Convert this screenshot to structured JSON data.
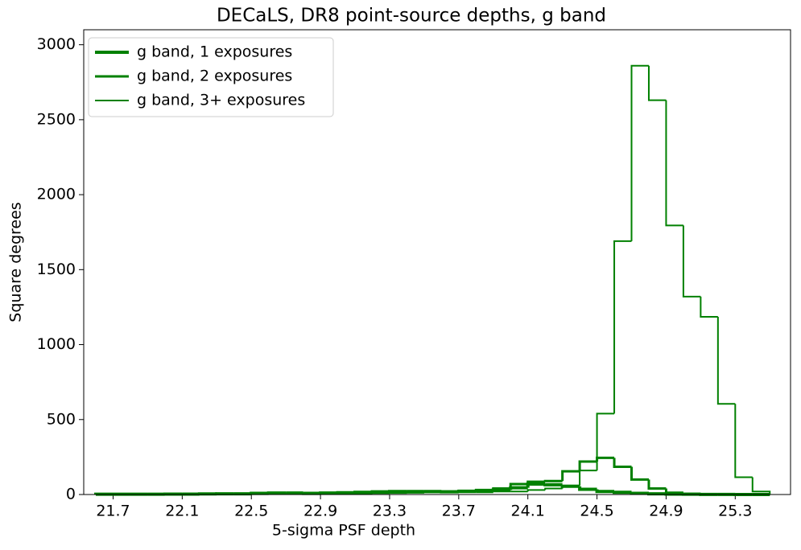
{
  "chart_data": {
    "type": "histogram",
    "title": "DECaLS, DR8 point-source depths, g band",
    "x_label": "5-sigma PSF depth",
    "y_label": "Square degrees",
    "bins": [
      21.6,
      21.7,
      21.8,
      21.9,
      22.0,
      22.1,
      22.2,
      22.3,
      22.4,
      22.5,
      22.6,
      22.7,
      22.8,
      22.9,
      23.0,
      23.1,
      23.2,
      23.3,
      23.4,
      23.5,
      23.6,
      23.7,
      23.8,
      23.9,
      24.0,
      24.1,
      24.2,
      24.3,
      24.4,
      24.5,
      24.6,
      24.7,
      24.8,
      24.9,
      25.0,
      25.1,
      25.2,
      25.3,
      25.4,
      25.5
    ],
    "series": [
      {
        "name": "g band, 1 exposures",
        "color": "#008000",
        "width": 4,
        "values": [
          2,
          2,
          2,
          2,
          3,
          3,
          4,
          5,
          5,
          8,
          10,
          10,
          8,
          10,
          12,
          15,
          18,
          20,
          20,
          20,
          18,
          20,
          20,
          30,
          45,
          70,
          65,
          55,
          35,
          20,
          15,
          8,
          5,
          3,
          2,
          1,
          1,
          0,
          0
        ]
      },
      {
        "name": "g band, 2 exposures",
        "color": "#008000",
        "width": 3,
        "values": [
          2,
          2,
          2,
          3,
          3,
          3,
          4,
          5,
          5,
          5,
          6,
          6,
          5,
          8,
          8,
          10,
          12,
          15,
          15,
          18,
          20,
          25,
          30,
          40,
          70,
          85,
          90,
          155,
          220,
          245,
          185,
          100,
          40,
          12,
          5,
          3,
          2,
          1,
          0
        ]
      },
      {
        "name": "g band, 3+ exposures",
        "color": "#008000",
        "width": 2,
        "values": [
          3,
          3,
          3,
          3,
          3,
          3,
          3,
          3,
          3,
          5,
          5,
          5,
          5,
          8,
          8,
          8,
          10,
          10,
          12,
          15,
          15,
          20,
          20,
          20,
          20,
          30,
          40,
          60,
          160,
          540,
          1690,
          2860,
          2630,
          1795,
          1320,
          1185,
          605,
          115,
          20
        ]
      }
    ],
    "xlim": [
      21.53,
      25.62
    ],
    "ylim": [
      0,
      3100
    ],
    "xticks": [
      21.7,
      22.1,
      22.5,
      22.9,
      23.3,
      23.7,
      24.1,
      24.5,
      24.9,
      25.3
    ],
    "yticks": [
      0,
      500,
      1000,
      1500,
      2000,
      2500,
      3000
    ],
    "legend": "upper-left"
  }
}
